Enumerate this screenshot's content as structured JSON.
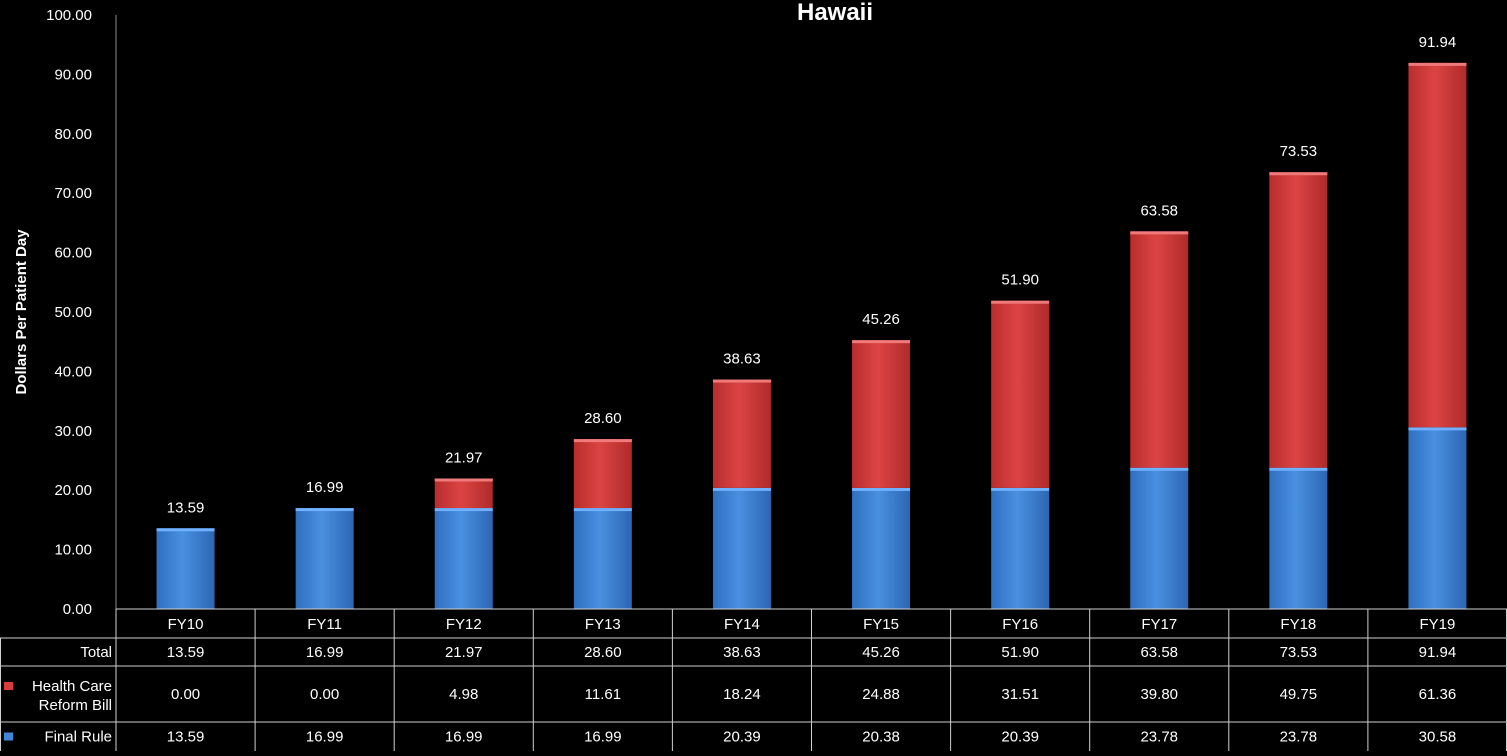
{
  "chart_data": {
    "type": "bar",
    "stacked": true,
    "title": "Hawaii",
    "ylabel": "Dollars Per Patient Day",
    "xlabel": "",
    "ylim": [
      0,
      100
    ],
    "yticks": [
      "0.00",
      "10.00",
      "20.00",
      "30.00",
      "40.00",
      "50.00",
      "60.00",
      "70.00",
      "80.00",
      "90.00",
      "100.00"
    ],
    "categories": [
      "FY10",
      "FY11",
      "FY12",
      "FY13",
      "FY14",
      "FY15",
      "FY16",
      "FY17",
      "FY18",
      "FY19"
    ],
    "series": [
      {
        "name": "Final Rule",
        "color": "#3f86d6",
        "values": [
          13.59,
          16.99,
          16.99,
          16.99,
          20.39,
          20.38,
          20.39,
          23.78,
          23.78,
          30.58
        ],
        "labels": [
          "13.59",
          "16.99",
          "16.99",
          "16.99",
          "20.39",
          "20.38",
          "20.39",
          "23.78",
          "23.78",
          "30.58"
        ]
      },
      {
        "name": "Health Care Reform Bill",
        "color": "#d63c3c",
        "values": [
          0.0,
          0.0,
          4.98,
          11.61,
          18.24,
          24.88,
          31.51,
          39.8,
          49.75,
          61.36
        ],
        "labels": [
          "0.00",
          "0.00",
          "4.98",
          "11.61",
          "18.24",
          "24.88",
          "31.51",
          "39.80",
          "49.75",
          "61.36"
        ]
      }
    ],
    "totals": {
      "name": "Total",
      "values": [
        13.59,
        16.99,
        21.97,
        28.6,
        38.63,
        45.26,
        51.9,
        63.58,
        73.53,
        91.94
      ],
      "labels": [
        "13.59",
        "16.99",
        "21.97",
        "28.60",
        "38.63",
        "45.26",
        "51.90",
        "63.58",
        "73.53",
        "91.94"
      ]
    },
    "data_table": {
      "rows": [
        {
          "label": "Total",
          "source": "totals",
          "marker": ""
        },
        {
          "label": "Health Care Reform Bill",
          "label_lines": [
            "Health Care",
            "Reform Bill"
          ],
          "source": "series.1",
          "marker": "#d63c3c"
        },
        {
          "label": "Final Rule",
          "label_lines": [
            "Final Rule"
          ],
          "source": "series.0",
          "marker": "#3f86d6"
        }
      ]
    },
    "grid": false,
    "legend": "data-table"
  }
}
